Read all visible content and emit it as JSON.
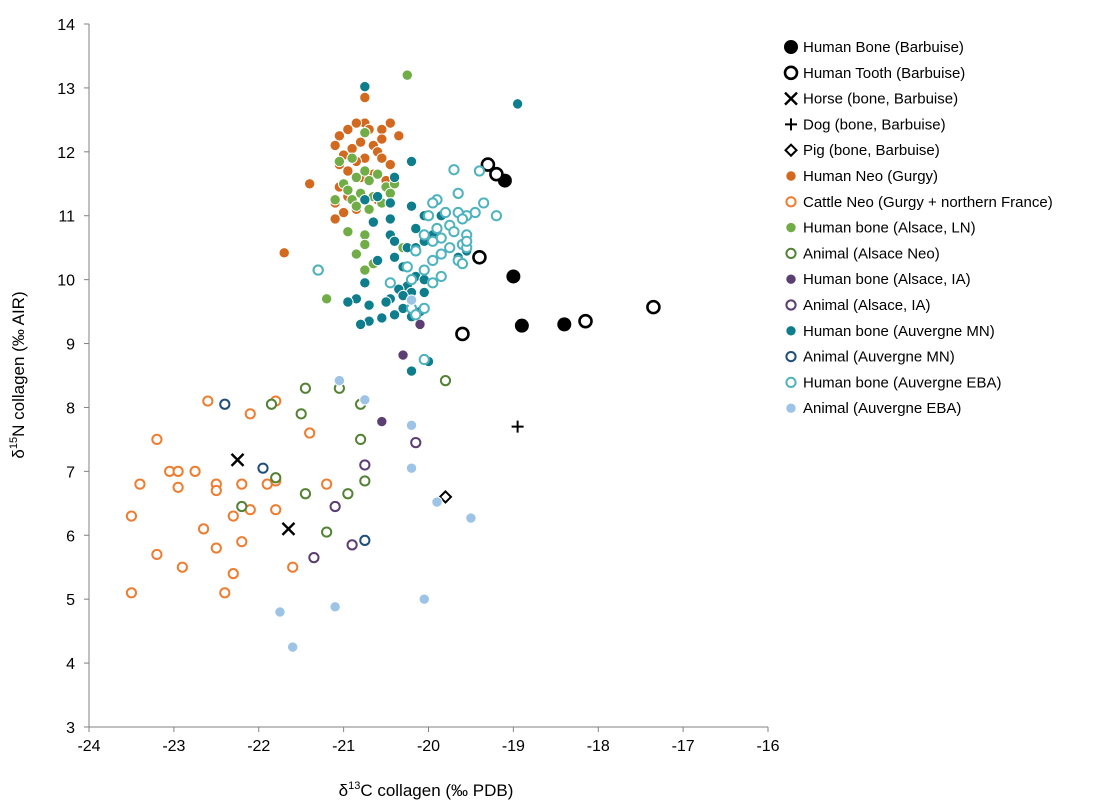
{
  "chart_data": {
    "type": "scatter",
    "xlabel": "δ13C collagen (‰ PDB)",
    "ylabel": "δ15N collagen (‰ AIR)",
    "xlabel_parts": {
      "prefix": "δ",
      "sup": "13",
      "rest": "C collagen (‰ PDB)"
    },
    "ylabel_parts": {
      "prefix": "δ",
      "sup": "15",
      "rest": "N collagen (‰ AIR)"
    },
    "xlim": [
      -24,
      -16
    ],
    "ylim": [
      3,
      14
    ],
    "x_ticks": [
      -24,
      -23,
      -22,
      -21,
      -20,
      -19,
      -18,
      -17,
      -16
    ],
    "y_ticks": [
      3,
      4,
      5,
      6,
      7,
      8,
      9,
      10,
      11,
      12,
      13,
      14
    ],
    "grid": false,
    "legend_position": "right",
    "series": [
      {
        "name": "Human Bone (Barbuise)",
        "marker": "circle-filled",
        "color": "#000000",
        "points": [
          [
            -19.1,
            11.55
          ],
          [
            -19.0,
            10.05
          ],
          [
            -18.9,
            9.28
          ],
          [
            -18.4,
            9.3
          ]
        ]
      },
      {
        "name": "Human Tooth (Barbuise)",
        "marker": "circle-open-thick",
        "color": "#000000",
        "points": [
          [
            -19.3,
            11.8
          ],
          [
            -19.2,
            11.65
          ],
          [
            -19.4,
            10.35
          ],
          [
            -19.6,
            9.15
          ],
          [
            -18.15,
            9.35
          ],
          [
            -17.35,
            9.57
          ]
        ]
      },
      {
        "name": "Horse (bone, Barbuise)",
        "marker": "x",
        "color": "#000000",
        "points": [
          [
            -22.25,
            7.18
          ],
          [
            -21.65,
            6.1
          ]
        ]
      },
      {
        "name": "Dog (bone, Barbuise)",
        "marker": "plus",
        "color": "#000000",
        "points": [
          [
            -18.95,
            7.7
          ]
        ]
      },
      {
        "name": "Pig (bone, Barbuise)",
        "marker": "diamond-open",
        "color": "#000000",
        "points": [
          [
            -19.8,
            6.6
          ]
        ]
      },
      {
        "name": "Human Neo (Gurgy)",
        "marker": "circle-filled-outline",
        "color": "#d2691e",
        "points": [
          [
            -20.75,
            12.85
          ],
          [
            -20.75,
            12.45
          ],
          [
            -20.85,
            12.45
          ],
          [
            -20.45,
            12.45
          ],
          [
            -20.55,
            12.35
          ],
          [
            -20.7,
            12.35
          ],
          [
            -20.95,
            12.35
          ],
          [
            -20.35,
            12.25
          ],
          [
            -20.55,
            12.2
          ],
          [
            -21.05,
            12.25
          ],
          [
            -20.8,
            12.15
          ],
          [
            -21.1,
            12.1
          ],
          [
            -20.65,
            12.1
          ],
          [
            -20.9,
            12.05
          ],
          [
            -20.6,
            12.0
          ],
          [
            -21.0,
            11.95
          ],
          [
            -20.75,
            11.9
          ],
          [
            -20.55,
            11.9
          ],
          [
            -20.85,
            11.85
          ],
          [
            -21.05,
            11.8
          ],
          [
            -20.45,
            11.8
          ],
          [
            -20.95,
            11.7
          ],
          [
            -20.65,
            11.65
          ],
          [
            -20.8,
            11.6
          ],
          [
            -20.5,
            11.55
          ],
          [
            -21.05,
            11.45
          ],
          [
            -20.95,
            11.3
          ],
          [
            -20.6,
            11.25
          ],
          [
            -21.1,
            11.2
          ],
          [
            -20.85,
            11.1
          ],
          [
            -21.0,
            11.05
          ],
          [
            -21.1,
            10.95
          ],
          [
            -21.4,
            11.5
          ],
          [
            -21.7,
            10.42
          ]
        ]
      },
      {
        "name": "Cattle Neo (Gurgy + northern France)",
        "marker": "circle-open",
        "color": "#ed7d31",
        "points": [
          [
            -22.6,
            8.1
          ],
          [
            -21.8,
            8.1
          ],
          [
            -22.1,
            7.9
          ],
          [
            -21.4,
            7.6
          ],
          [
            -23.2,
            7.5
          ],
          [
            -23.05,
            7.0
          ],
          [
            -22.95,
            7.0
          ],
          [
            -22.75,
            7.0
          ],
          [
            -23.4,
            6.8
          ],
          [
            -22.95,
            6.75
          ],
          [
            -22.5,
            6.8
          ],
          [
            -22.2,
            6.8
          ],
          [
            -21.9,
            6.8
          ],
          [
            -21.8,
            6.4
          ],
          [
            -21.2,
            6.8
          ],
          [
            -22.5,
            6.7
          ],
          [
            -22.1,
            6.4
          ],
          [
            -22.3,
            6.3
          ],
          [
            -23.5,
            6.3
          ],
          [
            -22.65,
            6.1
          ],
          [
            -22.2,
            5.9
          ],
          [
            -23.2,
            5.7
          ],
          [
            -22.5,
            5.8
          ],
          [
            -21.6,
            5.5
          ],
          [
            -22.9,
            5.5
          ],
          [
            -22.3,
            5.4
          ],
          [
            -23.5,
            5.1
          ],
          [
            -22.4,
            5.1
          ],
          [
            -21.8,
            6.85
          ]
        ]
      },
      {
        "name": "Human bone (Alsace, LN)",
        "marker": "circle-filled-outline",
        "color": "#70ad47",
        "points": [
          [
            -20.25,
            13.2
          ],
          [
            -20.75,
            12.3
          ],
          [
            -20.9,
            11.9
          ],
          [
            -21.05,
            11.85
          ],
          [
            -20.75,
            11.7
          ],
          [
            -20.6,
            11.65
          ],
          [
            -20.85,
            11.6
          ],
          [
            -21.0,
            11.5
          ],
          [
            -20.7,
            11.55
          ],
          [
            -20.5,
            11.45
          ],
          [
            -20.45,
            11.35
          ],
          [
            -20.4,
            11.5
          ],
          [
            -20.95,
            11.4
          ],
          [
            -20.8,
            11.35
          ],
          [
            -20.65,
            11.3
          ],
          [
            -20.9,
            11.25
          ],
          [
            -21.1,
            11.25
          ],
          [
            -20.55,
            11.2
          ],
          [
            -20.45,
            11.2
          ],
          [
            -20.7,
            11.1
          ],
          [
            -20.85,
            11.15
          ],
          [
            -20.95,
            10.75
          ],
          [
            -20.75,
            10.7
          ],
          [
            -20.75,
            10.55
          ],
          [
            -20.85,
            10.4
          ],
          [
            -20.65,
            10.25
          ],
          [
            -20.75,
            10.15
          ],
          [
            -21.2,
            9.7
          ],
          [
            -20.3,
            10.5
          ]
        ]
      },
      {
        "name": "Animal (Alsace Neo)",
        "marker": "circle-open",
        "color": "#548235",
        "points": [
          [
            -21.3,
            10.15
          ],
          [
            -21.45,
            8.3
          ],
          [
            -21.05,
            8.3
          ],
          [
            -20.8,
            8.05
          ],
          [
            -21.85,
            8.05
          ],
          [
            -21.5,
            7.9
          ],
          [
            -20.8,
            7.5
          ],
          [
            -21.8,
            6.9
          ],
          [
            -20.75,
            6.85
          ],
          [
            -21.45,
            6.65
          ],
          [
            -20.95,
            6.65
          ],
          [
            -22.2,
            6.45
          ],
          [
            -21.2,
            6.05
          ],
          [
            -19.8,
            8.42
          ]
        ]
      },
      {
        "name": "Human bone (Alsace, IA)",
        "marker": "circle-filled-outline",
        "color": "#5b3f72",
        "points": [
          [
            -20.1,
            9.3
          ],
          [
            -20.3,
            8.82
          ],
          [
            -20.55,
            7.78
          ]
        ]
      },
      {
        "name": "Animal (Alsace, IA)",
        "marker": "circle-open",
        "color": "#5b3f72",
        "points": [
          [
            -20.15,
            7.45
          ],
          [
            -20.75,
            7.1
          ],
          [
            -21.1,
            6.45
          ],
          [
            -21.35,
            5.65
          ],
          [
            -20.9,
            5.85
          ]
        ]
      },
      {
        "name": "Human bone (Auvergne MN)",
        "marker": "circle-filled-outline",
        "color": "#0e7d8c",
        "points": [
          [
            -20.75,
            13.02
          ],
          [
            -18.95,
            12.75
          ],
          [
            -20.2,
            11.85
          ],
          [
            -20.4,
            11.6
          ],
          [
            -20.6,
            11.3
          ],
          [
            -20.75,
            11.25
          ],
          [
            -20.45,
            11.2
          ],
          [
            -20.2,
            11.15
          ],
          [
            -19.85,
            11.0
          ],
          [
            -20.05,
            11.0
          ],
          [
            -20.45,
            10.95
          ],
          [
            -20.65,
            10.9
          ],
          [
            -20.15,
            10.8
          ],
          [
            -20.45,
            10.7
          ],
          [
            -19.95,
            10.7
          ],
          [
            -20.4,
            10.6
          ],
          [
            -20.05,
            10.6
          ],
          [
            -20.25,
            10.5
          ],
          [
            -20.15,
            10.5
          ],
          [
            -19.85,
            10.4
          ],
          [
            -19.65,
            10.35
          ],
          [
            -19.55,
            10.45
          ],
          [
            -20.4,
            10.35
          ],
          [
            -20.6,
            10.3
          ],
          [
            -20.3,
            10.2
          ],
          [
            -20.15,
            10.05
          ],
          [
            -20.05,
            10.0
          ],
          [
            -19.95,
            9.95
          ],
          [
            -20.25,
            9.9
          ],
          [
            -20.35,
            9.85
          ],
          [
            -20.2,
            9.8
          ],
          [
            -20.05,
            9.8
          ],
          [
            -20.3,
            9.75
          ],
          [
            -20.45,
            9.7
          ],
          [
            -20.5,
            9.65
          ],
          [
            -20.85,
            9.7
          ],
          [
            -20.95,
            9.65
          ],
          [
            -20.7,
            9.6
          ],
          [
            -20.3,
            9.55
          ],
          [
            -20.1,
            9.5
          ],
          [
            -20.4,
            9.45
          ],
          [
            -20.55,
            9.4
          ],
          [
            -20.7,
            9.35
          ],
          [
            -20.8,
            9.3
          ],
          [
            -20.2,
            9.42
          ],
          [
            -20.0,
            8.72
          ],
          [
            -20.2,
            8.57
          ],
          [
            -20.75,
            9.95
          ]
        ]
      },
      {
        "name": "Animal (Auvergne MN)",
        "marker": "circle-open",
        "color": "#1f4e79",
        "points": [
          [
            -22.4,
            8.05
          ],
          [
            -21.95,
            7.05
          ],
          [
            -20.75,
            5.92
          ]
        ]
      },
      {
        "name": "Human bone (Auvergne EBA)",
        "marker": "circle-open",
        "color": "#4fb3bf",
        "points": [
          [
            -19.4,
            11.7
          ],
          [
            -19.7,
            11.72
          ],
          [
            -19.65,
            11.35
          ],
          [
            -19.9,
            11.25
          ],
          [
            -19.95,
            11.2
          ],
          [
            -19.35,
            11.2
          ],
          [
            -19.45,
            11.05
          ],
          [
            -19.65,
            11.05
          ],
          [
            -19.8,
            11.05
          ],
          [
            -19.55,
            11.0
          ],
          [
            -19.2,
            11.0
          ],
          [
            -20.0,
            11.0
          ],
          [
            -19.6,
            10.95
          ],
          [
            -19.75,
            10.85
          ],
          [
            -19.9,
            10.8
          ],
          [
            -19.7,
            10.75
          ],
          [
            -19.55,
            10.7
          ],
          [
            -20.05,
            10.7
          ],
          [
            -19.85,
            10.65
          ],
          [
            -19.95,
            10.6
          ],
          [
            -19.6,
            10.55
          ],
          [
            -19.75,
            10.5
          ],
          [
            -19.55,
            10.5
          ],
          [
            -20.15,
            10.45
          ],
          [
            -19.85,
            10.4
          ],
          [
            -19.65,
            10.3
          ],
          [
            -19.95,
            10.3
          ],
          [
            -19.6,
            10.25
          ],
          [
            -20.25,
            10.2
          ],
          [
            -20.05,
            10.15
          ],
          [
            -19.85,
            10.05
          ],
          [
            -20.2,
            10.0
          ],
          [
            -19.95,
            9.95
          ],
          [
            -20.45,
            9.95
          ],
          [
            -20.2,
            9.55
          ],
          [
            -20.05,
            9.55
          ],
          [
            -20.15,
            9.45
          ],
          [
            -20.05,
            8.75
          ],
          [
            -21.3,
            10.15
          ],
          [
            -19.55,
            10.6
          ]
        ]
      },
      {
        "name": "Animal (Auvergne EBA)",
        "marker": "circle-filled-outline",
        "color": "#9dc3e6",
        "points": [
          [
            -20.2,
            9.68
          ],
          [
            -21.05,
            8.42
          ],
          [
            -20.75,
            8.12
          ],
          [
            -20.2,
            7.72
          ],
          [
            -20.2,
            7.05
          ],
          [
            -19.9,
            6.52
          ],
          [
            -19.5,
            6.27
          ],
          [
            -21.75,
            4.8
          ],
          [
            -21.1,
            4.88
          ],
          [
            -20.05,
            5.0
          ],
          [
            -21.6,
            4.25
          ]
        ]
      }
    ]
  }
}
